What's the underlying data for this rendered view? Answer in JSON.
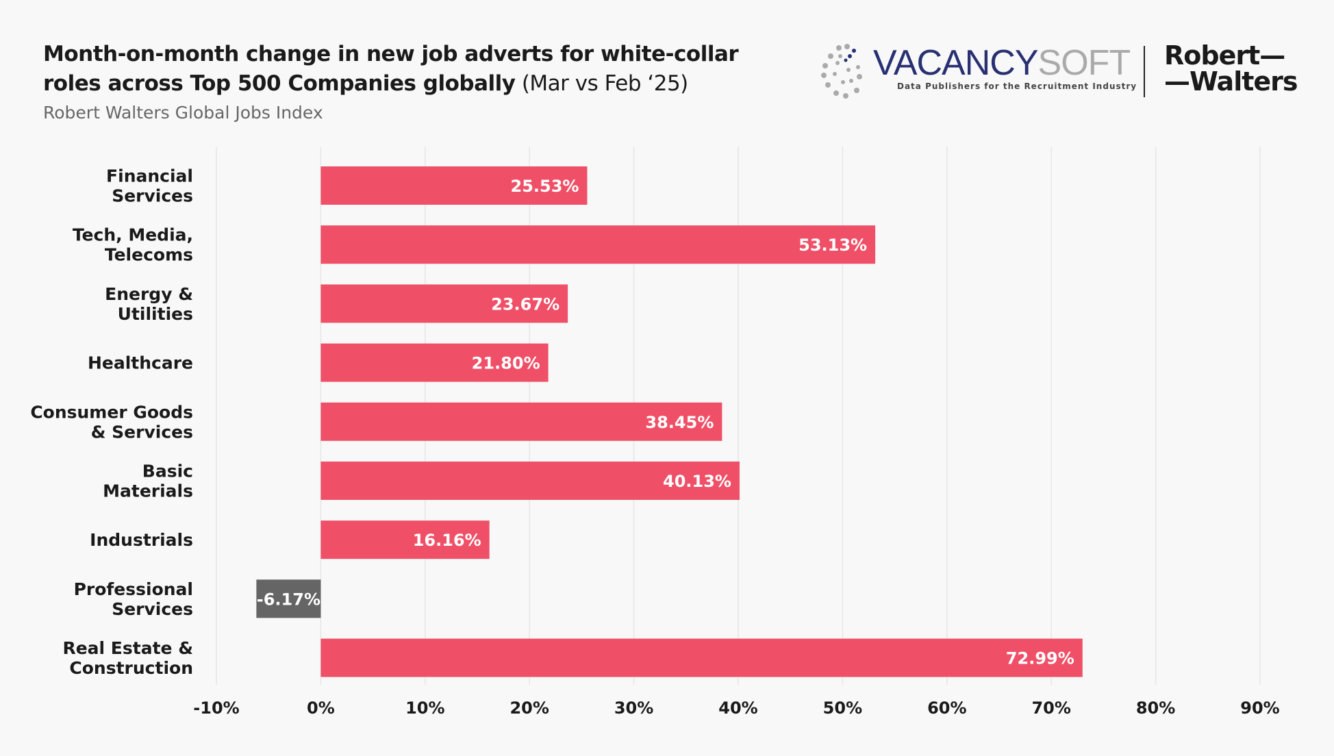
{
  "header": {
    "title_bold": "Month-on-month change in new job adverts for white-collar roles across Top 500 Companies globally",
    "title_light": " (Mar vs Feb ‘25)",
    "subtitle": "Robert Walters Global Jobs Index"
  },
  "logos": {
    "vacancysoft_a": "VACANCY",
    "vacancysoft_b": "SOFT",
    "vacancysoft_tag": "Data Publishers for the Recruitment Industry",
    "rw_line1": "Robert—",
    "rw_line2": "—Walters"
  },
  "colors": {
    "positive": "#ef5067",
    "negative": "#656565",
    "grid": "#e6e6e6"
  },
  "chart_data": {
    "type": "bar",
    "orientation": "horizontal",
    "title": "Month-on-month change in new job adverts for white-collar roles across Top 500 Companies globally (Mar vs Feb ‘25)",
    "categories": [
      [
        "Financial",
        "Services"
      ],
      [
        "Tech, Media,",
        "Telecoms"
      ],
      [
        "Energy &",
        "Utilities"
      ],
      [
        "Healthcare"
      ],
      [
        "Consumer Goods",
        "& Services"
      ],
      [
        "Basic",
        "Materials"
      ],
      [
        "Industrials"
      ],
      [
        "Professional",
        "Services"
      ],
      [
        "Real Estate &",
        "Construction"
      ]
    ],
    "values": [
      25.53,
      53.13,
      23.67,
      21.8,
      38.45,
      40.13,
      16.16,
      -6.17,
      72.99
    ],
    "value_labels": [
      "25.53%",
      "53.13%",
      "23.67%",
      "21.80%",
      "38.45%",
      "40.13%",
      "16.16%",
      "-6.17%",
      "72.99%"
    ],
    "xticks": [
      -10,
      0,
      10,
      20,
      30,
      40,
      50,
      60,
      70,
      80,
      90
    ],
    "xtick_labels": [
      "-10%",
      "0%",
      "10%",
      "20%",
      "30%",
      "40%",
      "50%",
      "60%",
      "70%",
      "80%",
      "90%"
    ],
    "xlim": [
      -10,
      90
    ],
    "grid": true,
    "legend": "none"
  }
}
